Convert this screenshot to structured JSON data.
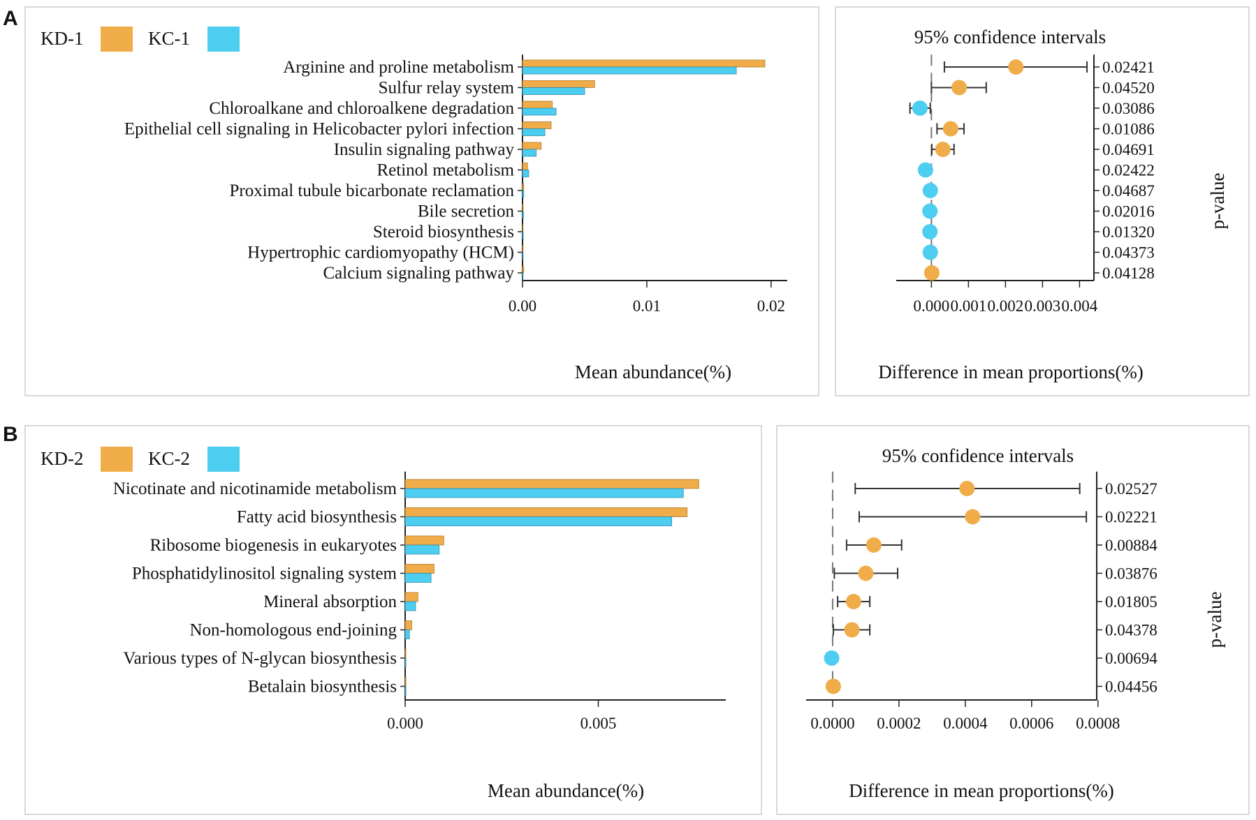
{
  "colors": {
    "kd": "#F0AC48",
    "kc": "#4DCDEF",
    "kd_stroke": "#B07A2A",
    "kc_stroke": "#2E8FB0",
    "axis": "#222222",
    "panel_border": "#D9D9D9",
    "error_bar": "#333333",
    "zero_line": "#777777"
  },
  "chart_data": [
    {
      "panel": "A",
      "type": "bar",
      "orientation": "horizontal",
      "legend": {
        "group1": "KD-1",
        "group2": "KC-1",
        "position": "top-left"
      },
      "categories": [
        "Arginine and proline metabolism",
        "Sulfur relay system",
        "Chloroalkane and chloroalkene degradation",
        "Epithelial cell signaling in Helicobacter pylori infection",
        "Insulin signaling pathway",
        "Retinol metabolism",
        "Proximal tubule bicarbonate reclamation",
        "Bile secretion",
        "Steroid biosynthesis",
        "Hypertrophic cardiomyopathy (HCM)",
        "Calcium signaling pathway"
      ],
      "series": [
        {
          "name": "KD-1",
          "values": [
            0.0195,
            0.0058,
            0.0024,
            0.0023,
            0.0015,
            0.0004,
            0.0001,
            5e-05,
            3e-05,
            3e-05,
            0.0001
          ]
        },
        {
          "name": "KC-1",
          "values": [
            0.0172,
            0.005,
            0.0027,
            0.0018,
            0.0011,
            0.0005,
            0.0001,
            8e-05,
            6e-05,
            5e-05,
            4e-05
          ]
        }
      ],
      "xlim": [
        0,
        0.0213
      ],
      "xticks": [
        0,
        0.01,
        0.02
      ],
      "xtick_labels": [
        "0.00",
        "0.01",
        "0.02"
      ],
      "xlabel": "Mean abundance(%)"
    },
    {
      "panel": "A",
      "type": "scatter",
      "subtype": "confidence-interval",
      "title": "95% confidence intervals",
      "points": [
        {
          "diff": 0.00228,
          "low": 0.00035,
          "high": 0.0042,
          "group": "KD-1",
          "p": "0.02421"
        },
        {
          "diff": 0.00075,
          "low": 0.0,
          "high": 0.00148,
          "group": "KD-1",
          "p": "0.04520"
        },
        {
          "diff": -0.00031,
          "low": -0.00058,
          "high": -3e-05,
          "group": "KC-1",
          "p": "0.03086"
        },
        {
          "diff": 0.00052,
          "low": 0.00015,
          "high": 0.00088,
          "group": "KD-1",
          "p": "0.01086"
        },
        {
          "diff": 0.00031,
          "low": 1e-05,
          "high": 0.00061,
          "group": "KD-1",
          "p": "0.04691"
        },
        {
          "diff": -0.00016,
          "low": -0.00029,
          "high": -4e-05,
          "group": "KC-1",
          "p": "0.02422"
        },
        {
          "diff": -3e-05,
          "low": -5e-05,
          "high": -1e-05,
          "group": "KC-1",
          "p": "0.04687"
        },
        {
          "diff": -4e-05,
          "low": -6e-05,
          "high": -2e-05,
          "group": "KC-1",
          "p": "0.02016"
        },
        {
          "diff": -4e-05,
          "low": -6e-05,
          "high": -2e-05,
          "group": "KC-1",
          "p": "0.01320"
        },
        {
          "diff": -3e-05,
          "low": -5e-05,
          "high": -1e-05,
          "group": "KC-1",
          "p": "0.04373"
        },
        {
          "diff": 1e-05,
          "low": -1e-05,
          "high": 3e-05,
          "group": "KD-1",
          "p": "0.04128"
        }
      ],
      "xlim": [
        -0.00095,
        0.0042
      ],
      "xticks": [
        0,
        0.001,
        0.002,
        0.003,
        0.004
      ],
      "xtick_labels": [
        "0.000",
        "0.001",
        "0.002",
        "0.003",
        "0.004"
      ],
      "xlabel": "Difference in mean proportions(%)",
      "ylabel_right": "p-value"
    },
    {
      "panel": "B",
      "type": "bar",
      "orientation": "horizontal",
      "legend": {
        "group1": "KD-2",
        "group2": "KC-2",
        "position": "top-left"
      },
      "categories": [
        "Nicotinate and nicotinamide metabolism",
        "Fatty acid biosynthesis",
        "Ribosome biogenesis in eukaryotes",
        "Phosphatidylinositol signaling system",
        "Mineral absorption",
        "Non-homologous end-joining",
        "Various types of N-glycan biosynthesis",
        "Betalain biosynthesis"
      ],
      "series": [
        {
          "name": "KD-2",
          "values": [
            0.0076,
            0.0073,
            0.001,
            0.00075,
            0.00033,
            0.00017,
            2e-05,
            2e-05
          ]
        },
        {
          "name": "KC-2",
          "values": [
            0.0072,
            0.0069,
            0.00088,
            0.00067,
            0.00027,
            0.00011,
            2e-05,
            2e-05
          ]
        }
      ],
      "xlim": [
        0,
        0.0083
      ],
      "xticks": [
        0,
        0.005
      ],
      "xtick_labels": [
        "0.000",
        "0.005"
      ],
      "xlabel": "Mean abundance(%)"
    },
    {
      "panel": "B",
      "type": "scatter",
      "subtype": "confidence-interval",
      "title": "95% confidence intervals",
      "points": [
        {
          "diff": 0.000405,
          "low": 6.8e-05,
          "high": 0.000745,
          "group": "KD-2",
          "p": "0.02527"
        },
        {
          "diff": 0.000422,
          "low": 8e-05,
          "high": 0.000765,
          "group": "KD-2",
          "p": "0.02221"
        },
        {
          "diff": 0.000124,
          "low": 4.2e-05,
          "high": 0.000208,
          "group": "KD-2",
          "p": "0.00884"
        },
        {
          "diff": 0.0001,
          "low": 5e-06,
          "high": 0.000196,
          "group": "KD-2",
          "p": "0.03876"
        },
        {
          "diff": 6.3e-05,
          "low": 1.5e-05,
          "high": 0.000112,
          "group": "KD-2",
          "p": "0.01805"
        },
        {
          "diff": 5.8e-05,
          "low": 2e-06,
          "high": 0.000112,
          "group": "KD-2",
          "p": "0.04378"
        },
        {
          "diff": -3e-06,
          "low": -5e-06,
          "high": -1e-06,
          "group": "KC-2",
          "p": "0.00694"
        },
        {
          "diff": 2e-06,
          "low": 0.0,
          "high": 4e-06,
          "group": "KD-2",
          "p": "0.04456"
        }
      ],
      "xlim": [
        -8e-05,
        0.00079
      ],
      "xticks": [
        0,
        0.0002,
        0.0004,
        0.0006,
        0.0008
      ],
      "xtick_labels": [
        "0.0000",
        "0.0002",
        "0.0004",
        "0.0006",
        "0.0008"
      ],
      "xlabel": "Difference in mean proportions(%)",
      "ylabel_right": "p-value"
    }
  ],
  "panel_labels": [
    "A",
    "B"
  ]
}
